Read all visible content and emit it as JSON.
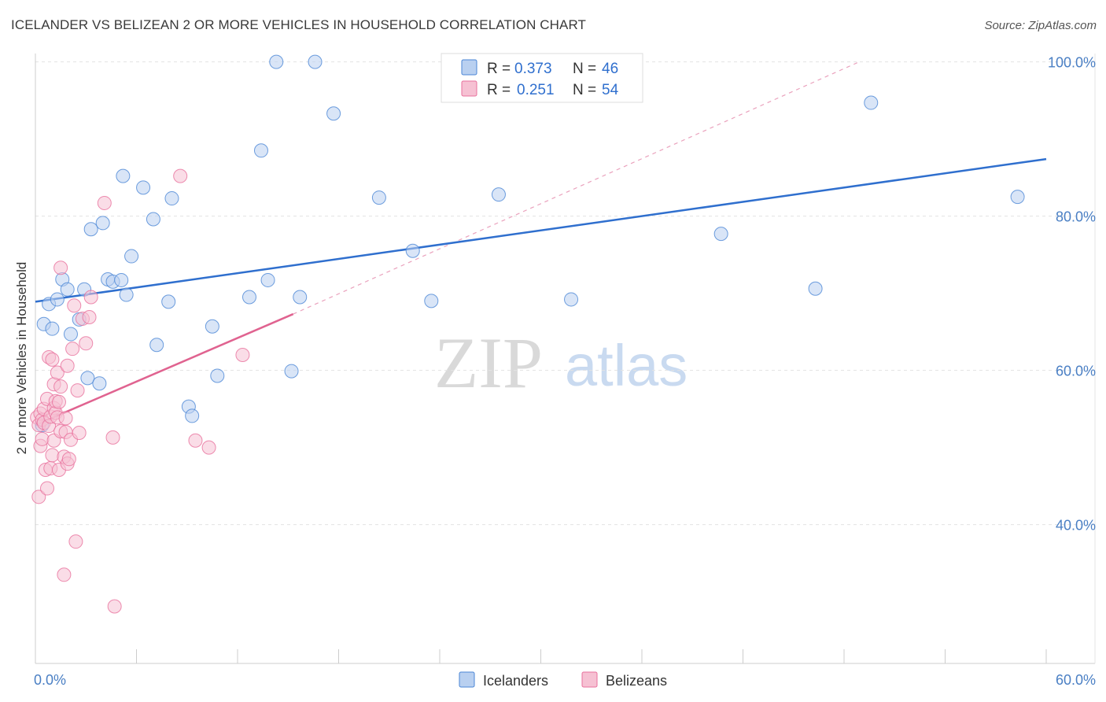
{
  "header": {
    "title": "ICELANDER VS BELIZEAN 2 OR MORE VEHICLES IN HOUSEHOLD CORRELATION CHART",
    "source": "Source: ZipAtlas.com"
  },
  "watermark": {
    "zip": "ZIP",
    "atlas": "atlas"
  },
  "colors": {
    "blue": "#4a86d6",
    "blue_fill": "#b9d0f0",
    "blue_line": "#2f6fce",
    "pink": "#e8709c",
    "pink_fill": "#f6c1d3",
    "pink_line": "#e06390",
    "grid": "#e3e3e3",
    "tick_text": "#4a7fc4"
  },
  "legend": {
    "rows": [
      {
        "r_label": "R =",
        "r_value": "0.373",
        "n_label": "N =",
        "n_value": "46"
      },
      {
        "r_label": "R =",
        "r_value": "0.251",
        "n_label": "N =",
        "n_value": "54"
      }
    ]
  },
  "bottom_legend": {
    "items": [
      "Icelanders",
      "Belizeans"
    ]
  },
  "chart_data": {
    "type": "scatter",
    "title": "ICELANDER VS BELIZEAN 2 OR MORE VEHICLES IN HOUSEHOLD CORRELATION CHART",
    "xlabel": "",
    "ylabel": "2 or more Vehicles in Household",
    "xlim": [
      0,
      60
    ],
    "ylim": [
      22,
      102
    ],
    "x_tick_labels": [
      {
        "value": 0,
        "label": "0.0%"
      },
      {
        "value": 60,
        "label": "60.0%"
      }
    ],
    "y_tick_labels": [
      {
        "value": 40,
        "label": "40.0%"
      },
      {
        "value": 60,
        "label": "60.0%"
      },
      {
        "value": 80,
        "label": "80.0%"
      },
      {
        "value": 100,
        "label": "100.0%"
      }
    ],
    "gridlines_y": [
      40,
      60,
      80,
      100
    ],
    "legend_position": "top-center",
    "series": [
      {
        "name": "Icelanders",
        "color": "#4a86d6",
        "R": 0.373,
        "N": 46,
        "trend": {
          "x": [
            0,
            60
          ],
          "y": [
            68.9,
            87.4
          ]
        },
        "points": [
          [
            0.5,
            66.0
          ],
          [
            0.8,
            68.6
          ],
          [
            1.0,
            65.4
          ],
          [
            1.3,
            69.2
          ],
          [
            1.6,
            71.8
          ],
          [
            1.9,
            70.5
          ],
          [
            2.1,
            64.7
          ],
          [
            2.6,
            66.6
          ],
          [
            2.9,
            70.5
          ],
          [
            3.1,
            59.0
          ],
          [
            3.3,
            78.3
          ],
          [
            3.8,
            58.3
          ],
          [
            4.0,
            79.1
          ],
          [
            4.3,
            71.8
          ],
          [
            4.6,
            71.5
          ],
          [
            5.1,
            71.7
          ],
          [
            5.2,
            85.2
          ],
          [
            5.4,
            69.8
          ],
          [
            5.7,
            74.8
          ],
          [
            6.4,
            83.7
          ],
          [
            7.0,
            79.6
          ],
          [
            7.2,
            63.3
          ],
          [
            7.9,
            68.9
          ],
          [
            8.1,
            82.3
          ],
          [
            9.1,
            55.3
          ],
          [
            9.3,
            54.1
          ],
          [
            10.5,
            65.7
          ],
          [
            10.8,
            59.3
          ],
          [
            12.7,
            69.5
          ],
          [
            13.4,
            88.5
          ],
          [
            13.8,
            71.7
          ],
          [
            14.3,
            100.0
          ],
          [
            15.2,
            59.9
          ],
          [
            15.7,
            69.5
          ],
          [
            16.6,
            100.0
          ],
          [
            17.7,
            93.3
          ],
          [
            20.4,
            82.4
          ],
          [
            22.4,
            75.5
          ],
          [
            23.5,
            69.0
          ],
          [
            27.5,
            82.8
          ],
          [
            31.8,
            69.2
          ],
          [
            40.7,
            77.7
          ],
          [
            46.3,
            70.6
          ],
          [
            49.6,
            94.7
          ],
          [
            58.3,
            82.5
          ],
          [
            0.4,
            52.9
          ]
        ]
      },
      {
        "name": "Belizeans",
        "color": "#e8709c",
        "R": 0.251,
        "N": 54,
        "trend": {
          "x": [
            0,
            15.3
          ],
          "y": [
            52.9,
            67.3
          ]
        },
        "trend_extension": {
          "x": [
            15.3,
            48.9
          ],
          "y": [
            67.3,
            100.0
          ]
        },
        "points": [
          [
            0.1,
            53.9
          ],
          [
            0.2,
            43.6
          ],
          [
            0.2,
            52.9
          ],
          [
            0.3,
            54.4
          ],
          [
            0.3,
            50.2
          ],
          [
            0.4,
            53.6
          ],
          [
            0.4,
            51.1
          ],
          [
            0.5,
            55.0
          ],
          [
            0.5,
            53.2
          ],
          [
            0.6,
            47.1
          ],
          [
            0.7,
            44.7
          ],
          [
            0.7,
            56.3
          ],
          [
            0.8,
            61.7
          ],
          [
            0.8,
            52.8
          ],
          [
            0.9,
            54.0
          ],
          [
            0.9,
            47.3
          ],
          [
            1.0,
            49.0
          ],
          [
            1.0,
            61.4
          ],
          [
            1.1,
            55.1
          ],
          [
            1.1,
            50.9
          ],
          [
            1.1,
            58.2
          ],
          [
            1.2,
            54.5
          ],
          [
            1.2,
            56.0
          ],
          [
            1.3,
            59.7
          ],
          [
            1.3,
            53.9
          ],
          [
            1.4,
            55.9
          ],
          [
            1.4,
            47.1
          ],
          [
            1.5,
            57.9
          ],
          [
            1.5,
            52.1
          ],
          [
            1.5,
            73.3
          ],
          [
            1.7,
            33.5
          ],
          [
            1.7,
            48.8
          ],
          [
            1.8,
            53.8
          ],
          [
            1.8,
            52.0
          ],
          [
            1.9,
            60.6
          ],
          [
            1.9,
            47.9
          ],
          [
            2.0,
            48.5
          ],
          [
            2.1,
            51.0
          ],
          [
            2.2,
            62.8
          ],
          [
            2.3,
            68.4
          ],
          [
            2.4,
            37.8
          ],
          [
            2.5,
            57.4
          ],
          [
            2.6,
            51.9
          ],
          [
            2.8,
            66.7
          ],
          [
            3.0,
            63.5
          ],
          [
            3.2,
            66.9
          ],
          [
            3.3,
            69.5
          ],
          [
            4.1,
            81.7
          ],
          [
            4.6,
            51.3
          ],
          [
            4.7,
            29.4
          ],
          [
            8.6,
            85.2
          ],
          [
            9.5,
            50.9
          ],
          [
            10.3,
            50.0
          ],
          [
            12.3,
            62.0
          ]
        ]
      }
    ]
  }
}
